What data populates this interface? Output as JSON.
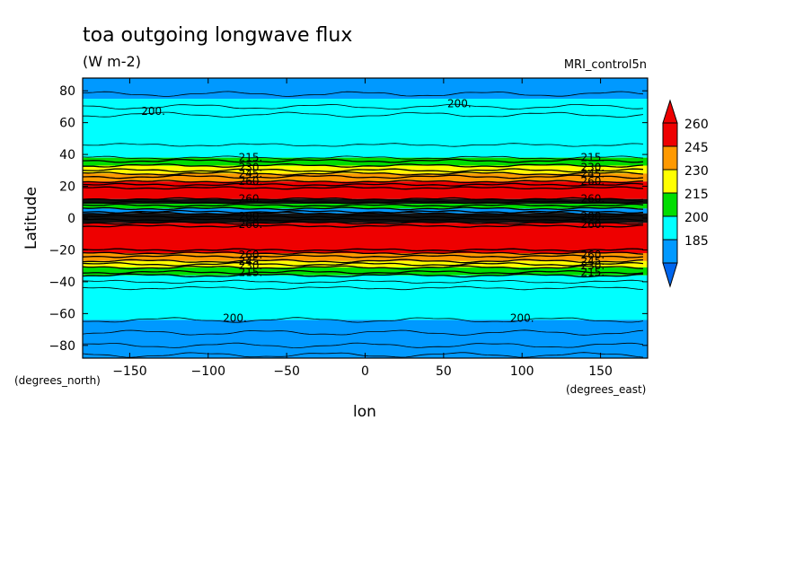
{
  "chart_data": {
    "type": "heatmap",
    "title": "toa outgoing longwave flux",
    "units": "(W m-2)",
    "dataset": "MRI_control5n",
    "xlabel": "lon",
    "ylabel": "Latitude",
    "x_unit_label": "(degrees_east)",
    "y_unit_label": "(degrees_north)",
    "xlim": [
      -180,
      180
    ],
    "ylim": [
      -88,
      88
    ],
    "xticks": [
      -150,
      -100,
      -50,
      0,
      50,
      100,
      150
    ],
    "yticks": [
      -80,
      -60,
      -40,
      -20,
      0,
      20,
      40,
      60,
      80
    ],
    "xtick_labels": [
      "-150",
      "-100",
      "-50",
      "0",
      "50",
      "100",
      "150"
    ],
    "ytick_labels": [
      "-80",
      "-60",
      "-40",
      "-20",
      "0",
      "20",
      "40",
      "60",
      "80"
    ],
    "levels": [
      185,
      200,
      215,
      230,
      245,
      260
    ],
    "colorbar_labels": [
      "260",
      "245",
      "230",
      "215",
      "200",
      "185"
    ],
    "colorbar_colors": [
      "#ee0000",
      "#ff9900",
      "#ffff00",
      "#00dd00",
      "#00ffff",
      "#0099ff"
    ],
    "bands": [
      {
        "lat_from": 88,
        "lat_to": 75,
        "color": "#0099ff"
      },
      {
        "lat_from": 75,
        "lat_to": 66,
        "color": "#00ffff"
      },
      {
        "lat_from": 66,
        "lat_to": 38,
        "color": "#00ffff"
      },
      {
        "lat_from": 38,
        "lat_to": 33,
        "color": "#00dd00"
      },
      {
        "lat_from": 33,
        "lat_to": 28,
        "color": "#ffff00"
      },
      {
        "lat_from": 28,
        "lat_to": 23,
        "color": "#ff9900"
      },
      {
        "lat_from": 23,
        "lat_to": 12,
        "color": "#ee0000"
      },
      {
        "lat_from": 12,
        "lat_to": 9,
        "color": "#111111"
      },
      {
        "lat_from": 9,
        "lat_to": 6,
        "color": "#00dd00"
      },
      {
        "lat_from": 6,
        "lat_to": 3,
        "color": "#0099ff"
      },
      {
        "lat_from": 3,
        "lat_to": -3,
        "color": "#111111"
      },
      {
        "lat_from": -3,
        "lat_to": -22,
        "color": "#ee0000"
      },
      {
        "lat_from": -22,
        "lat_to": -27,
        "color": "#ff9900"
      },
      {
        "lat_from": -27,
        "lat_to": -31,
        "color": "#ffff00"
      },
      {
        "lat_from": -31,
        "lat_to": -36,
        "color": "#00dd00"
      },
      {
        "lat_from": -36,
        "lat_to": -64,
        "color": "#00ffff"
      },
      {
        "lat_from": -64,
        "lat_to": -88,
        "color": "#0099ff"
      }
    ],
    "contour_lats": [
      78,
      70,
      65,
      46,
      38,
      36,
      33,
      30,
      28,
      26,
      23,
      21,
      19,
      12,
      10,
      8,
      6,
      4,
      3,
      1,
      -1,
      -3,
      -5,
      -20,
      -22,
      -24,
      -27,
      -29,
      -31,
      -34,
      -36,
      -40,
      -44,
      -64,
      -72,
      -80,
      -86
    ],
    "contour_labels": [
      {
        "text": "200.",
        "lon": -135,
        "lat": 67
      },
      {
        "text": "200.",
        "lon": 60,
        "lat": 72
      },
      {
        "text": "215.",
        "lon": -73,
        "lat": 38
      },
      {
        "text": "230.",
        "lon": -73,
        "lat": 32
      },
      {
        "text": "245.",
        "lon": -73,
        "lat": 28
      },
      {
        "text": "260.",
        "lon": -73,
        "lat": 23
      },
      {
        "text": "215.",
        "lon": 145,
        "lat": 38
      },
      {
        "text": "230.",
        "lon": 145,
        "lat": 32
      },
      {
        "text": "245.",
        "lon": 145,
        "lat": 28
      },
      {
        "text": "260.",
        "lon": 145,
        "lat": 23
      },
      {
        "text": "260.",
        "lon": -73,
        "lat": 12
      },
      {
        "text": "200.",
        "lon": -73,
        "lat": 1
      },
      {
        "text": "260.",
        "lon": -73,
        "lat": -4
      },
      {
        "text": "260.",
        "lon": 145,
        "lat": 12
      },
      {
        "text": "200.",
        "lon": 145,
        "lat": 1
      },
      {
        "text": "260.",
        "lon": 145,
        "lat": -4
      },
      {
        "text": "260.",
        "lon": -73,
        "lat": -23
      },
      {
        "text": "245.",
        "lon": -73,
        "lat": -27
      },
      {
        "text": "230.",
        "lon": -73,
        "lat": -30
      },
      {
        "text": "215.",
        "lon": -73,
        "lat": -34
      },
      {
        "text": "260.",
        "lon": 145,
        "lat": -23
      },
      {
        "text": "245.",
        "lon": 145,
        "lat": -27
      },
      {
        "text": "230.",
        "lon": 145,
        "lat": -30
      },
      {
        "text": "215.",
        "lon": 145,
        "lat": -34
      },
      {
        "text": "200.",
        "lon": -83,
        "lat": -63
      },
      {
        "text": "200.",
        "lon": 100,
        "lat": -63
      }
    ]
  }
}
